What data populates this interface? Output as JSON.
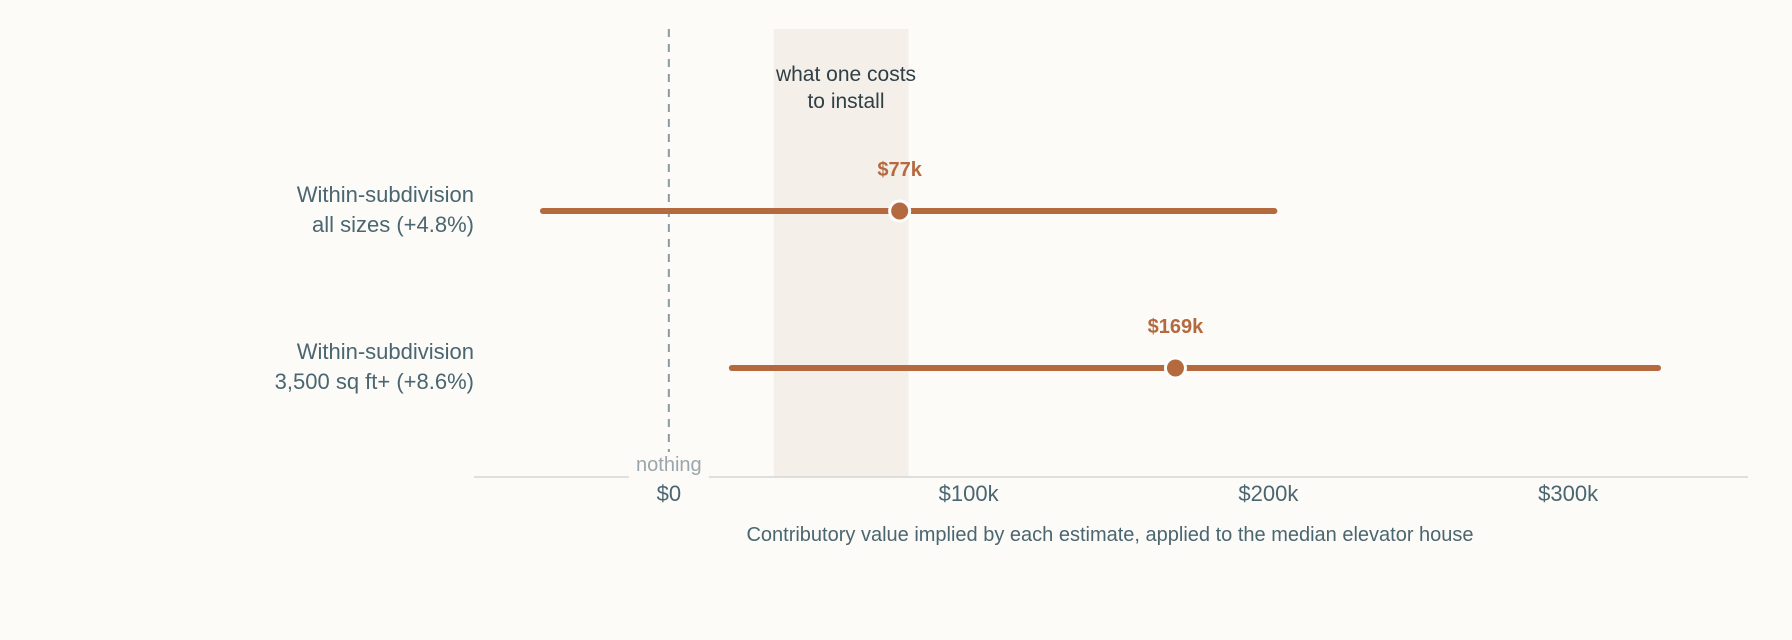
{
  "chart_data": {
    "type": "dot-interval",
    "xlabel": "Contributory value implied by each estimate, applied to the median elevator house",
    "xlim": [
      -65,
      360
    ],
    "ticks": [
      {
        "value": 0,
        "label": "$0"
      },
      {
        "value": 100,
        "label": "$100k"
      },
      {
        "value": 200,
        "label": "$200k"
      },
      {
        "value": 300,
        "label": "$300k"
      }
    ],
    "reference_line": {
      "value": 0,
      "label": "nothing"
    },
    "install_cost_band": {
      "range": [
        35,
        80
      ],
      "label_line1": "what one costs",
      "label_line2": "to install"
    },
    "series": [
      {
        "label_line1": "Within-subdivision",
        "label_line2": "all sizes  (+4.8%)",
        "estimate": 77,
        "low": -42,
        "high": 202,
        "value_label": "$77k"
      },
      {
        "label_line1": "Within-subdivision",
        "label_line2": "3,500 sq ft+  (+8.6%)",
        "estimate": 169,
        "low": 21,
        "high": 330,
        "value_label": "$169k"
      }
    ],
    "colors": {
      "point": "#b5693f",
      "band": "#f4efe8",
      "reference": "#8a9ba2",
      "axis": "#d6d6d2"
    }
  }
}
